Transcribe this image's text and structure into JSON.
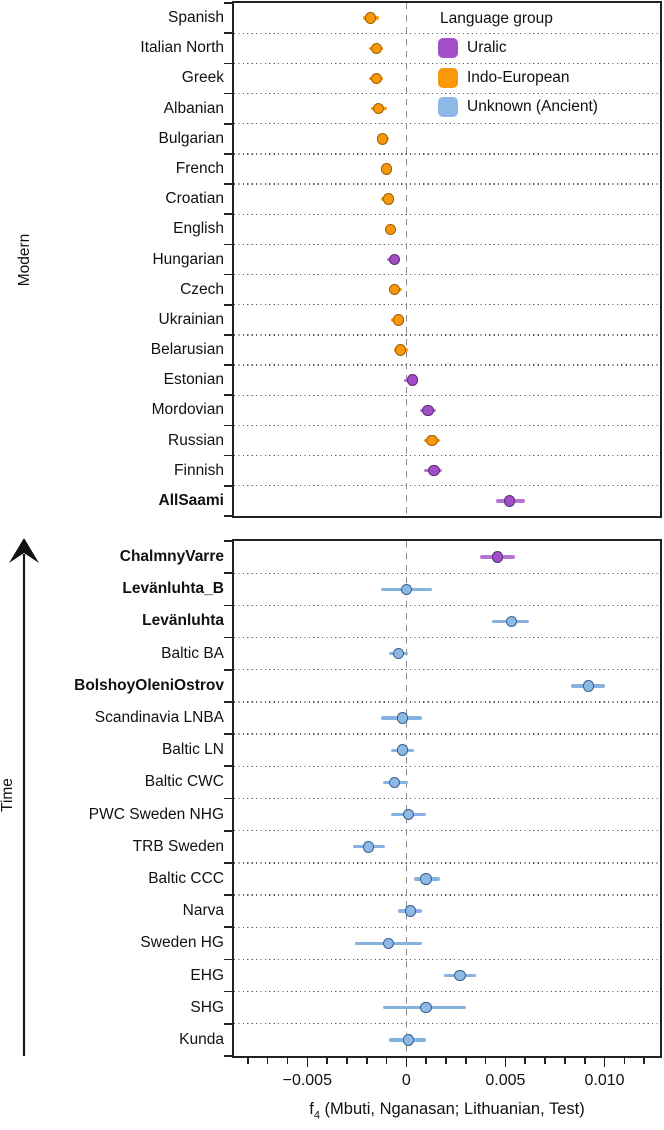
{
  "figure": {
    "legend": {
      "title": "Language group",
      "entries": [
        {
          "label": "Uralic",
          "color": "#A24FC7"
        },
        {
          "label": "Indo-European",
          "color": "#F9980B"
        },
        {
          "label": "Unknown (Ancient)",
          "color": "#8CB9E6"
        }
      ]
    },
    "x_axis": {
      "title_base": "f",
      "title_sub": "4",
      "title_rest": " (Mbuti, Nganasan; Lithuanian, Test)",
      "major_ticks": [
        {
          "value": -0.005,
          "label": "−0.005"
        },
        {
          "value": 0,
          "label": "0"
        },
        {
          "value": 0.005,
          "label": "0.005"
        },
        {
          "value": 0.01,
          "label": "0.010"
        }
      ],
      "minor_tick_step": 0.001,
      "minor_tick_range": [
        -0.008,
        0.012
      ]
    }
  },
  "chart_data": {
    "type": "scatter",
    "title": "",
    "xlabel": "f4 (Mbuti, Nganasan; Lithuanian, Test)",
    "ylabel_top_panel": "Modern",
    "ylabel_bottom_panel": "Time",
    "xlim": [
      -0.0087,
      0.0128
    ],
    "grid": "dotted horizontal lines between categories",
    "zero_line": "dashed vertical at x=0",
    "legend_position": "top-right of upper panel",
    "groups": {
      "Uralic": {
        "fill": "#A24FC7",
        "stroke": "#5A2D73",
        "bar": "#B873D6"
      },
      "Indo-European": {
        "fill": "#F9980B",
        "stroke": "#9A5F04",
        "bar": "#F9980B"
      },
      "Unknown (Ancient)": {
        "fill": "#8CB9E6",
        "stroke": "#3C6087",
        "bar": "#85B2E1"
      }
    },
    "panels": [
      {
        "id": "modern",
        "axis_label": "Modern",
        "rows": [
          {
            "label": "Spanish",
            "group": "Indo-European",
            "bold": false,
            "value": -0.0018,
            "ci_low": -0.0022,
            "ci_high": -0.0014
          },
          {
            "label": "Italian North",
            "group": "Indo-European",
            "bold": false,
            "value": -0.0015,
            "ci_low": -0.0019,
            "ci_high": -0.0012
          },
          {
            "label": "Greek",
            "group": "Indo-European",
            "bold": false,
            "value": -0.0015,
            "ci_low": -0.0019,
            "ci_high": -0.0012
          },
          {
            "label": "Albanian",
            "group": "Indo-European",
            "bold": false,
            "value": -0.0014,
            "ci_low": -0.0018,
            "ci_high": -0.001
          },
          {
            "label": "Bulgarian",
            "group": "Indo-European",
            "bold": false,
            "value": -0.0012,
            "ci_low": -0.0015,
            "ci_high": -0.0009
          },
          {
            "label": "French",
            "group": "Indo-European",
            "bold": false,
            "value": -0.001,
            "ci_low": -0.0013,
            "ci_high": -0.0007
          },
          {
            "label": "Croatian",
            "group": "Indo-European",
            "bold": false,
            "value": -0.0009,
            "ci_low": -0.0013,
            "ci_high": -0.0006
          },
          {
            "label": "English",
            "group": "Indo-European",
            "bold": false,
            "value": -0.0008,
            "ci_low": -0.0011,
            "ci_high": -0.0005
          },
          {
            "label": "Hungarian",
            "group": "Uralic",
            "bold": false,
            "value": -0.0006,
            "ci_low": -0.001,
            "ci_high": -0.0003
          },
          {
            "label": "Czech",
            "group": "Indo-European",
            "bold": false,
            "value": -0.0006,
            "ci_low": -0.0009,
            "ci_high": -0.0002
          },
          {
            "label": "Ukrainian",
            "group": "Indo-European",
            "bold": false,
            "value": -0.0004,
            "ci_low": -0.0008,
            "ci_high": -0.0001
          },
          {
            "label": "Belarusian",
            "group": "Indo-European",
            "bold": false,
            "value": -0.0003,
            "ci_low": -0.0006,
            "ci_high": 0.0001
          },
          {
            "label": "Estonian",
            "group": "Uralic",
            "bold": false,
            "value": 0.0003,
            "ci_low": -0.0001,
            "ci_high": 0.0006
          },
          {
            "label": "Mordovian",
            "group": "Uralic",
            "bold": false,
            "value": 0.0011,
            "ci_low": 0.0007,
            "ci_high": 0.0015
          },
          {
            "label": "Russian",
            "group": "Indo-European",
            "bold": false,
            "value": 0.0013,
            "ci_low": 0.0009,
            "ci_high": 0.0017
          },
          {
            "label": "Finnish",
            "group": "Uralic",
            "bold": false,
            "value": 0.0014,
            "ci_low": 0.0009,
            "ci_high": 0.0018
          },
          {
            "label": "AllSaami",
            "group": "Uralic",
            "bold": true,
            "value": 0.0052,
            "ci_low": 0.0045,
            "ci_high": 0.006
          }
        ]
      },
      {
        "id": "ancient",
        "axis_label": "Time",
        "time_arrow": true,
        "rows": [
          {
            "label": "ChalmnyVarre",
            "group": "Uralic",
            "bold": true,
            "value": 0.0046,
            "ci_low": 0.0037,
            "ci_high": 0.0055
          },
          {
            "label": "Levänluhta_B",
            "group": "Unknown (Ancient)",
            "bold": true,
            "value": 0.0,
            "ci_low": -0.0013,
            "ci_high": 0.0013
          },
          {
            "label": "Levänluhta",
            "group": "Unknown (Ancient)",
            "bold": true,
            "value": 0.0053,
            "ci_low": 0.0043,
            "ci_high": 0.0062
          },
          {
            "label": "Baltic BA",
            "group": "Unknown (Ancient)",
            "bold": false,
            "value": -0.0004,
            "ci_low": -0.0009,
            "ci_high": 0.0001
          },
          {
            "label": "BolshoyOleniOstrov",
            "group": "Unknown (Ancient)",
            "bold": true,
            "value": 0.0092,
            "ci_low": 0.0083,
            "ci_high": 0.01
          },
          {
            "label": "Scandinavia LNBA",
            "group": "Unknown (Ancient)",
            "bold": false,
            "value": -0.0002,
            "ci_low": -0.0013,
            "ci_high": 0.0008
          },
          {
            "label": "Baltic LN",
            "group": "Unknown (Ancient)",
            "bold": false,
            "value": -0.0002,
            "ci_low": -0.0008,
            "ci_high": 0.0004
          },
          {
            "label": "Baltic CWC",
            "group": "Unknown (Ancient)",
            "bold": false,
            "value": -0.0006,
            "ci_low": -0.0012,
            "ci_high": 0.0001
          },
          {
            "label": "PWC Sweden NHG",
            "group": "Unknown (Ancient)",
            "bold": false,
            "value": 0.0001,
            "ci_low": -0.0008,
            "ci_high": 0.001
          },
          {
            "label": "TRB Sweden",
            "group": "Unknown (Ancient)",
            "bold": false,
            "value": -0.0019,
            "ci_low": -0.0027,
            "ci_high": -0.0011
          },
          {
            "label": "Baltic CCC",
            "group": "Unknown (Ancient)",
            "bold": false,
            "value": 0.001,
            "ci_low": 0.0004,
            "ci_high": 0.0017
          },
          {
            "label": "Narva",
            "group": "Unknown (Ancient)",
            "bold": false,
            "value": 0.0002,
            "ci_low": -0.0004,
            "ci_high": 0.0008
          },
          {
            "label": "Sweden HG",
            "group": "Unknown (Ancient)",
            "bold": false,
            "value": -0.0009,
            "ci_low": -0.0026,
            "ci_high": 0.0008
          },
          {
            "label": "EHG",
            "group": "Unknown (Ancient)",
            "bold": false,
            "value": 0.0027,
            "ci_low": 0.0019,
            "ci_high": 0.0035
          },
          {
            "label": "SHG",
            "group": "Unknown (Ancient)",
            "bold": false,
            "value": 0.001,
            "ci_low": -0.0012,
            "ci_high": 0.003
          },
          {
            "label": "Kunda",
            "group": "Unknown (Ancient)",
            "bold": false,
            "value": 0.0001,
            "ci_low": -0.0009,
            "ci_high": 0.001
          }
        ]
      }
    ]
  }
}
